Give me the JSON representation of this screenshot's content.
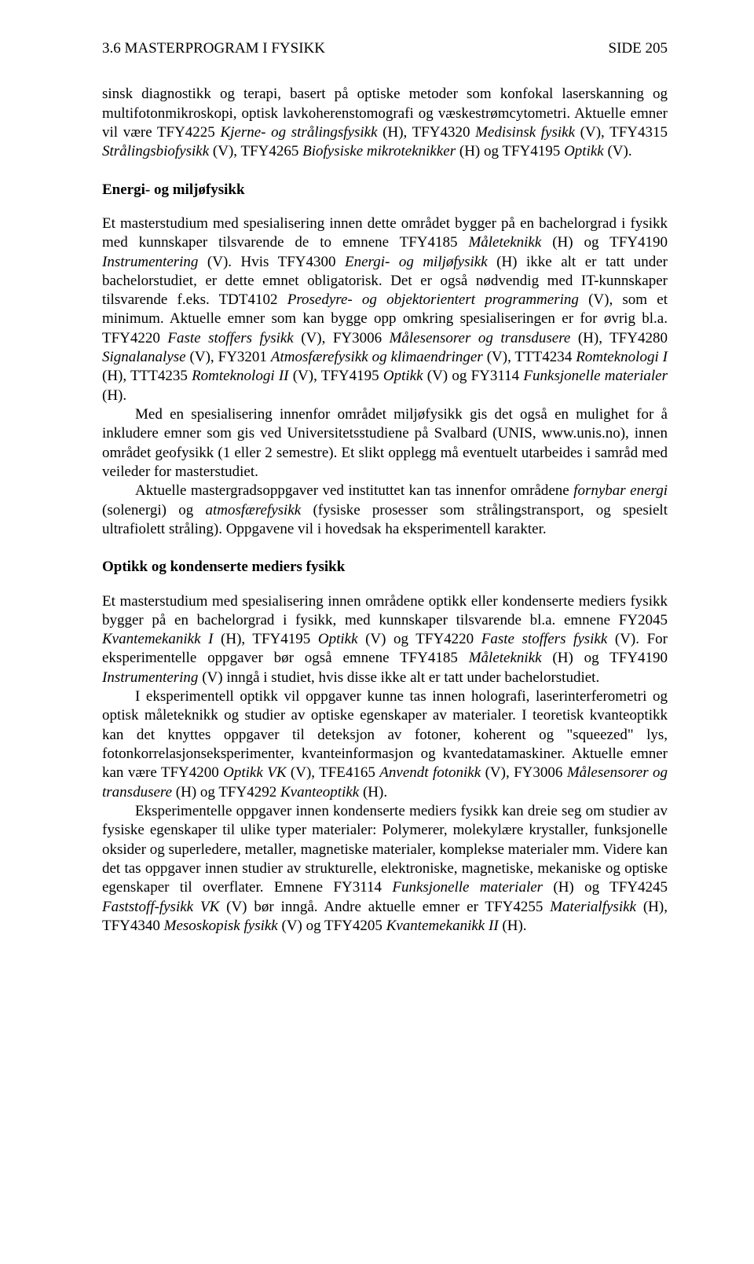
{
  "header": {
    "left": "3.6 MASTERPROGRAM I FYSIKK",
    "right": "SIDE 205"
  },
  "p1": {
    "t1": "sinsk diagnostikk og terapi, basert på optiske metoder som konfokal laserskanning og multifotonmikroskopi, optisk lavkoherenstomografi og væskestrømcytometri. Aktuelle emner vil være TFY4225 ",
    "i1": "Kjerne- og strålingsfysikk",
    "t2": " (H), TFY4320 ",
    "i2": "Medisinsk fysikk",
    "t3": " (V), TFY4315 ",
    "i3": "Strålingsbiofysikk",
    "t4": " (V), TFY4265 ",
    "i4": "Biofysiske mikroteknikker",
    "t5": " (H) og TFY4195 ",
    "i5": "Optikk",
    "t6": " (V)."
  },
  "s2": {
    "title": "Energi- og miljøfysikk",
    "p1": {
      "t1": "Et masterstudium med spesialisering innen dette området bygger på en bachelorgrad i fysikk med kunnskaper tilsvarende de to emnene TFY4185 ",
      "i1": "Måleteknikk",
      "t2": " (H) og TFY4190 ",
      "i2": "Instrumentering",
      "t3": " (V). Hvis TFY4300 ",
      "i3": "Energi- og miljøfysikk",
      "t4": " (H) ikke alt er tatt under bachelorstudiet, er dette emnet obligatorisk. Det er også nødvendig med IT-kunnskaper tilsvarende f.eks. TDT4102 ",
      "i4": "Prosedyre- og objektorientert programmering",
      "t5": " (V), som et minimum. Aktuelle emner som kan bygge opp omkring spesialiseringen er for øvrig bl.a. TFY4220 ",
      "i5": "Faste stoffers fysikk",
      "t6": " (V), FY3006 ",
      "i6": "Målesensorer og transdusere",
      "t7": " (H), TFY4280 ",
      "i7": "Signalanalyse",
      "t8": " (V), FY3201 ",
      "i8": "Atmosfærefysikk og klimaendringer",
      "t9": " (V), TTT4234 ",
      "i9": "Romteknologi I",
      "t10": " (H), TTT4235 ",
      "i10": "Romteknologi II",
      "t11": " (V), TFY4195 ",
      "i11": "Optikk",
      "t12": " (V) og FY3114 ",
      "i12": "Funksjonelle materialer",
      "t13": " (H)."
    },
    "p2": "Med en spesialisering innenfor området miljøfysikk gis det også en mulighet for å inkludere emner som gis ved Universitetsstudiene på Svalbard (UNIS, www.unis.no), innen området geofysikk (1 eller 2 semestre). Et slikt opplegg må eventuelt utarbeides i samråd med veileder for masterstudiet.",
    "p3": {
      "t1": "Aktuelle mastergradsoppgaver ved instituttet kan tas innenfor områdene ",
      "i1": "fornybar energi",
      "t2": " (solenergi) og ",
      "i2": "atmosfærefysikk",
      "t3": " (fysiske prosesser som strålingstransport, og spesielt ultrafiolett stråling). Oppgavene vil i hovedsak ha eksperimentell karakter."
    }
  },
  "s3": {
    "title": "Optikk og kondenserte mediers fysikk",
    "p1": {
      "t1": "Et masterstudium med spesialisering innen områdene optikk eller kondenserte mediers fysikk bygger på en bachelorgrad i fysikk, med kunnskaper tilsvarende bl.a. emnene FY2045 ",
      "i1": "Kvantemekanikk I",
      "t2": " (H), TFY4195 ",
      "i2": "Optikk",
      "t3": " (V) og TFY4220 ",
      "i3": "Faste stoffers fysikk",
      "t4": " (V). For eksperimentelle oppgaver bør også emnene TFY4185 ",
      "i4": "Måleteknikk",
      "t5": " (H) og TFY4190 ",
      "i5": "Instrumentering",
      "t6": " (V) inngå i studiet, hvis disse ikke alt er tatt under bachelorstudiet."
    },
    "p2": {
      "t1": "I eksperimentell optikk vil oppgaver kunne tas innen holografi, laserinterferometri og optisk måleteknikk og studier av optiske egenskaper av materialer. I teoretisk kvanteoptikk kan det knyttes oppgaver til deteksjon av fotoner, koherent og \"squeezed\" lys, fotonkorrelasjonseksperimenter, kvanteinformasjon og kvantedatamaskiner. Aktuelle emner kan være TFY4200 ",
      "i1": "Optikk VK",
      "t2": " (V), TFE4165 ",
      "i2": "Anvendt fotonikk",
      "t3": " (V), FY3006 ",
      "i3": "Målesensorer og transdusere",
      "t4": " (H) og  TFY4292 ",
      "i4": "Kvanteoptikk",
      "t5": " (H)."
    },
    "p3": {
      "t1": "Eksperimentelle oppgaver innen kondenserte mediers fysikk kan dreie seg om studier av fysiske egenskaper til ulike typer materialer: Polymerer, molekylære krystaller, funksjonelle oksider og superledere, metaller, magnetiske materialer, komplekse materialer mm. Videre kan det tas oppgaver innen studier av strukturelle, elektroniske, magnetiske, mekaniske og optiske egenskaper til overflater. Emnene FY3114 ",
      "i1": "Funksjonelle materialer",
      "t2": " (H) og TFY4245 ",
      "i2": "Faststoff-fysikk VK",
      "t3": " (V) bør inngå. Andre aktuelle emner er TFY4255 ",
      "i3": "Materialfysikk",
      "t4": " (H), TFY4340 ",
      "i4": "Mesoskopisk fysikk",
      "t5": " (V) og TFY4205 ",
      "i5": "Kvantemekanikk II",
      "t6": " (H)."
    }
  }
}
